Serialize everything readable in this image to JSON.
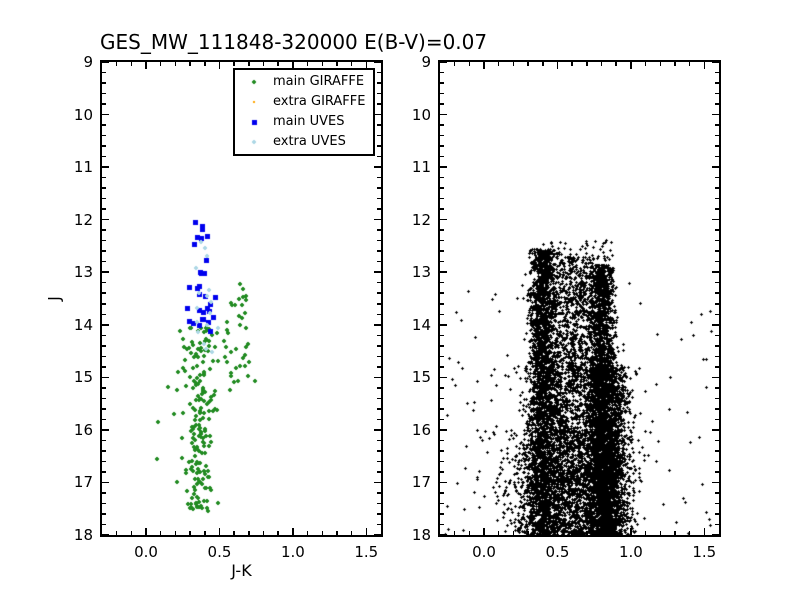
{
  "figure": {
    "title": "GES_MW_111848-320000 E(B-V)=0.07",
    "ylabel": "J",
    "xlabel_left": "J-K",
    "background": "#ffffff",
    "axis_color": "#000000"
  },
  "colors": {
    "main_giraffe": "#228B22",
    "extra_giraffe": "#FFA500",
    "main_uves": "#0000EE",
    "extra_uves": "#ADD8E6",
    "field_stars": "#000000"
  },
  "legend": {
    "position": "upper right of left panel",
    "entries": [
      {
        "label": "main GIRAFFE",
        "marker": "plus",
        "color": "#228B22",
        "size": 4,
        "thickness": 2
      },
      {
        "label": "extra GIRAFFE",
        "marker": "dot",
        "color": "#FFA500",
        "size": 2
      },
      {
        "label": "main UVES",
        "marker": "square",
        "color": "#0000EE",
        "size": 5
      },
      {
        "label": "extra UVES",
        "marker": "plus",
        "color": "#ADD8E6",
        "size": 4,
        "thickness": 2
      }
    ]
  },
  "chart_data": [
    {
      "id": "left",
      "type": "scatter",
      "title": "GES_MW_111848-320000 E(B-V)=0.07",
      "xlabel": "J-K",
      "ylabel": "J",
      "xlim": [
        -0.3,
        1.6
      ],
      "ylim": [
        18,
        9
      ],
      "y_axis_inverted": true,
      "grid": false,
      "xticks": [
        0.0,
        0.5,
        1.0,
        1.5
      ],
      "xtick_labels": [
        "0.0",
        "0.5",
        "1.0",
        "1.5"
      ],
      "yticks": [
        9,
        10,
        11,
        12,
        13,
        14,
        15,
        16,
        17,
        18
      ],
      "ytick_labels": [
        "9",
        "10",
        "11",
        "12",
        "13",
        "14",
        "15",
        "16",
        "17",
        "18"
      ],
      "x_minor_step": 0.1,
      "y_minor_step": 0.2,
      "series": [
        {
          "name": "main GIRAFFE",
          "color": "#228B22",
          "marker": "plus",
          "size": 4,
          "thickness": 2,
          "seed": 101,
          "clusters": [
            {
              "n": 42,
              "x": {
                "dist": "normal",
                "mean": 0.62,
                "sd": 0.085,
                "min": 0.45,
                "max": 0.82
              },
              "y": {
                "dist": "uniform",
                "min": 13.15,
                "max": 15.3
              }
            },
            {
              "n": 180,
              "x": {
                "dist": "normal",
                "mean": 0.36,
                "sd": 0.05,
                "min": 0.2,
                "max": 0.52
              },
              "y": {
                "dist": "uniform",
                "min": 14.05,
                "max": 17.55
              }
            },
            {
              "n": 7,
              "x": {
                "dist": "uniform",
                "min": 0.07,
                "max": 0.22
              },
              "y": {
                "dist": "uniform",
                "min": 14.7,
                "max": 17.3
              }
            }
          ]
        },
        {
          "name": "extra GIRAFFE",
          "color": "#FFA500",
          "marker": "dot",
          "size": 2,
          "seed": 102,
          "clusters": []
        },
        {
          "name": "main UVES",
          "color": "#0000EE",
          "marker": "square",
          "size": 5,
          "seed": 103,
          "clusters": [
            {
              "n": 11,
              "x": {
                "dist": "normal",
                "mean": 0.385,
                "sd": 0.035,
                "min": 0.3,
                "max": 0.46
              },
              "y": {
                "dist": "uniform",
                "min": 12.0,
                "max": 13.1
              }
            },
            {
              "n": 20,
              "x": {
                "dist": "normal",
                "mean": 0.375,
                "sd": 0.05,
                "min": 0.28,
                "max": 0.47
              },
              "y": {
                "dist": "uniform",
                "min": 13.15,
                "max": 14.2
              }
            }
          ]
        },
        {
          "name": "extra UVES",
          "color": "#ADD8E6",
          "marker": "plus",
          "size": 4,
          "thickness": 2,
          "seed": 104,
          "clusters": [
            {
              "n": 4,
              "x": {
                "dist": "normal",
                "mean": 0.4,
                "sd": 0.03,
                "min": 0.32,
                "max": 0.48
              },
              "y": {
                "dist": "uniform",
                "min": 12.4,
                "max": 13.1
              }
            },
            {
              "n": 13,
              "x": {
                "dist": "normal",
                "mean": 0.4,
                "sd": 0.045,
                "min": 0.3,
                "max": 0.5
              },
              "y": {
                "dist": "uniform",
                "min": 13.3,
                "max": 14.55
              }
            }
          ]
        }
      ]
    },
    {
      "id": "right",
      "type": "scatter",
      "title": "",
      "xlabel": "",
      "ylabel": "",
      "xlim": [
        -0.3,
        1.6
      ],
      "ylim": [
        18,
        9
      ],
      "y_axis_inverted": true,
      "grid": false,
      "xticks": [
        0.0,
        0.5,
        1.0,
        1.5
      ],
      "xtick_labels": [
        "0.0",
        "0.5",
        "1.0",
        "1.5"
      ],
      "yticks": [
        9,
        10,
        11,
        12,
        13,
        14,
        15,
        16,
        17,
        18
      ],
      "ytick_labels": [
        "9",
        "10",
        "11",
        "12",
        "13",
        "14",
        "15",
        "16",
        "17",
        "18"
      ],
      "x_minor_step": 0.1,
      "y_minor_step": 0.2,
      "series": [
        {
          "name": "field stars",
          "color": "#000000",
          "marker": "plus",
          "size": 3,
          "thickness": 1,
          "seed": 201,
          "clusters": [
            {
              "n": 45,
              "x": {
                "dist": "uniform",
                "min": 0.3,
                "max": 0.88
              },
              "y": {
                "dist": "uniform",
                "min": 12.38,
                "max": 12.75
              }
            },
            {
              "n": 3000,
              "x": {
                "dist": "normal",
                "mean": 0.4,
                "sd": 0.042,
                "sd_grow": 0.03,
                "min": 0.05,
                "max": 0.75
              },
              "y": {
                "dist": "uniform",
                "min": 12.55,
                "max": 18.0
              }
            },
            {
              "n": 2000,
              "x": {
                "dist": "normal",
                "mean": 0.6,
                "sd": 0.1,
                "min": 0.2,
                "max": 1.0
              },
              "y": {
                "dist": "uniform",
                "min": 12.7,
                "max": 18.0
              }
            },
            {
              "n": 2600,
              "x": {
                "dist": "normal",
                "mean": 0.8,
                "sd": 0.038,
                "sd_grow": 0.02,
                "min": 0.55,
                "max": 1.05
              },
              "y": {
                "dist": "uniform",
                "min": 12.85,
                "max": 18.0
              }
            },
            {
              "n": 2000,
              "x": {
                "dist": "normal",
                "mean": 0.85,
                "sd": 0.075,
                "min": 0.5,
                "max": 1.15
              },
              "y": {
                "dist": "uniform",
                "min": 14.8,
                "max": 18.0
              }
            },
            {
              "n": 900,
              "x": {
                "dist": "normal",
                "mean": 0.55,
                "sd": 0.22,
                "min": -0.15,
                "max": 1.2
              },
              "y": {
                "dist": "uniform",
                "min": 16.0,
                "max": 18.0
              }
            },
            {
              "n": 140,
              "x": {
                "dist": "uniform",
                "min": -0.27,
                "max": 1.55
              },
              "y": {
                "dist": "uniform",
                "min": 13.2,
                "max": 18.0
              }
            }
          ]
        }
      ]
    }
  ]
}
